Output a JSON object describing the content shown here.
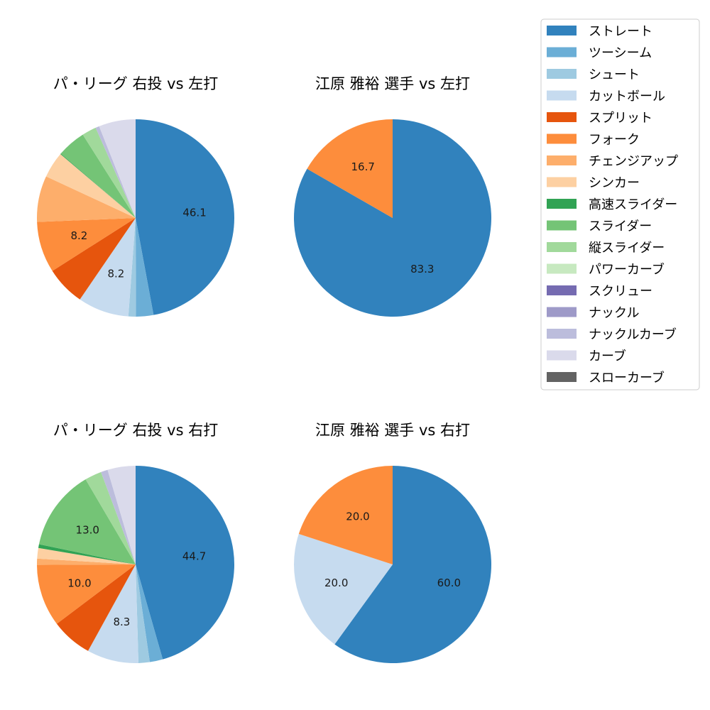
{
  "legend": {
    "items": [
      {
        "label": "ストレート",
        "color": "#3182bd"
      },
      {
        "label": "ツーシーム",
        "color": "#6baed6"
      },
      {
        "label": "シュート",
        "color": "#9ecae1"
      },
      {
        "label": "カットボール",
        "color": "#c6dbef"
      },
      {
        "label": "スプリット",
        "color": "#e6550d"
      },
      {
        "label": "フォーク",
        "color": "#fd8d3c"
      },
      {
        "label": "チェンジアップ",
        "color": "#fdae6b"
      },
      {
        "label": "シンカー",
        "color": "#fdd0a2"
      },
      {
        "label": "高速スライダー",
        "color": "#31a354"
      },
      {
        "label": "スライダー",
        "color": "#74c476"
      },
      {
        "label": "縦スライダー",
        "color": "#a1d99b"
      },
      {
        "label": "パワーカーブ",
        "color": "#c7e9c0"
      },
      {
        "label": "スクリュー",
        "color": "#756bb1"
      },
      {
        "label": "ナックル",
        "color": "#9e9ac8"
      },
      {
        "label": "ナックルカーブ",
        "color": "#bcbddc"
      },
      {
        "label": "カーブ",
        "color": "#dadaeb"
      },
      {
        "label": "スローカーブ",
        "color": "#636363"
      }
    ]
  },
  "chart_data": [
    {
      "type": "pie",
      "title": "パ・リーグ 右投 vs 左打",
      "slices": [
        {
          "category": "ストレート",
          "value": 46.1,
          "label": "46.1"
        },
        {
          "category": "ツーシーム",
          "value": 2.8,
          "label": ""
        },
        {
          "category": "シュート",
          "value": 1.2,
          "label": ""
        },
        {
          "category": "カットボール",
          "value": 8.2,
          "label": "8.2"
        },
        {
          "category": "スプリット",
          "value": 6.3,
          "label": ""
        },
        {
          "category": "フォーク",
          "value": 8.2,
          "label": "8.2"
        },
        {
          "category": "チェンジアップ",
          "value": 7.4,
          "label": ""
        },
        {
          "category": "シンカー",
          "value": 4.2,
          "label": ""
        },
        {
          "category": "高速スライダー",
          "value": 0.1,
          "label": ""
        },
        {
          "category": "スライダー",
          "value": 4.6,
          "label": ""
        },
        {
          "category": "縦スライダー",
          "value": 2.3,
          "label": ""
        },
        {
          "category": "ナックルカーブ",
          "value": 0.6,
          "label": ""
        },
        {
          "category": "カーブ",
          "value": 5.9,
          "label": ""
        }
      ]
    },
    {
      "type": "pie",
      "title": "江原 雅裕 選手 vs 左打",
      "slices": [
        {
          "category": "ストレート",
          "value": 83.3,
          "label": "83.3"
        },
        {
          "category": "フォーク",
          "value": 16.7,
          "label": "16.7"
        }
      ]
    },
    {
      "type": "pie",
      "title": "パ・リーグ 右投 vs 右打",
      "slices": [
        {
          "category": "ストレート",
          "value": 44.7,
          "label": "44.7"
        },
        {
          "category": "ツーシーム",
          "value": 2.1,
          "label": ""
        },
        {
          "category": "シュート",
          "value": 1.8,
          "label": ""
        },
        {
          "category": "カットボール",
          "value": 8.3,
          "label": "8.3"
        },
        {
          "category": "スプリット",
          "value": 6.6,
          "label": ""
        },
        {
          "category": "フォーク",
          "value": 10.0,
          "label": "10.0"
        },
        {
          "category": "チェンジアップ",
          "value": 1.0,
          "label": ""
        },
        {
          "category": "シンカー",
          "value": 1.7,
          "label": ""
        },
        {
          "category": "高速スライダー",
          "value": 0.6,
          "label": ""
        },
        {
          "category": "スライダー",
          "value": 13.0,
          "label": "13.0"
        },
        {
          "category": "縦スライダー",
          "value": 2.7,
          "label": ""
        },
        {
          "category": "ナックルカーブ",
          "value": 1.1,
          "label": ""
        },
        {
          "category": "カーブ",
          "value": 4.5,
          "label": ""
        }
      ]
    },
    {
      "type": "pie",
      "title": "江原 雅裕 選手 vs 右打",
      "slices": [
        {
          "category": "ストレート",
          "value": 60.0,
          "label": "60.0"
        },
        {
          "category": "カットボール",
          "value": 20.0,
          "label": "20.0"
        },
        {
          "category": "フォーク",
          "value": 20.0,
          "label": "20.0"
        }
      ]
    }
  ]
}
